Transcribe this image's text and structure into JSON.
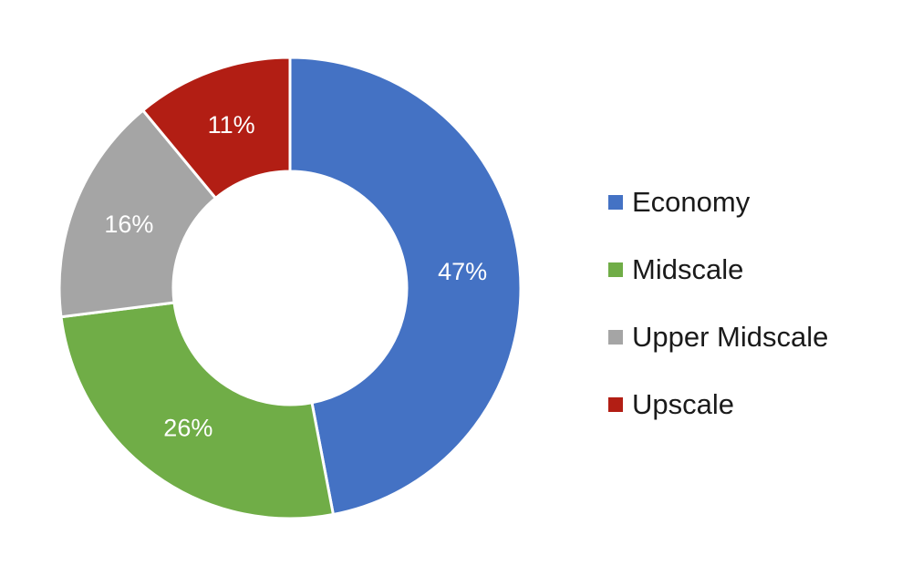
{
  "chart_data": {
    "type": "pie",
    "title": "",
    "categories": [
      "Economy",
      "Midscale",
      "Upper Midscale",
      "Upscale"
    ],
    "values": [
      47,
      26,
      16,
      11
    ],
    "data_labels": [
      "47%",
      "26%",
      "16%",
      "11%"
    ],
    "colors": [
      "#4472C4",
      "#70AD47",
      "#A5A5A5",
      "#B21E14"
    ],
    "donut": true,
    "legend_position": "right"
  }
}
